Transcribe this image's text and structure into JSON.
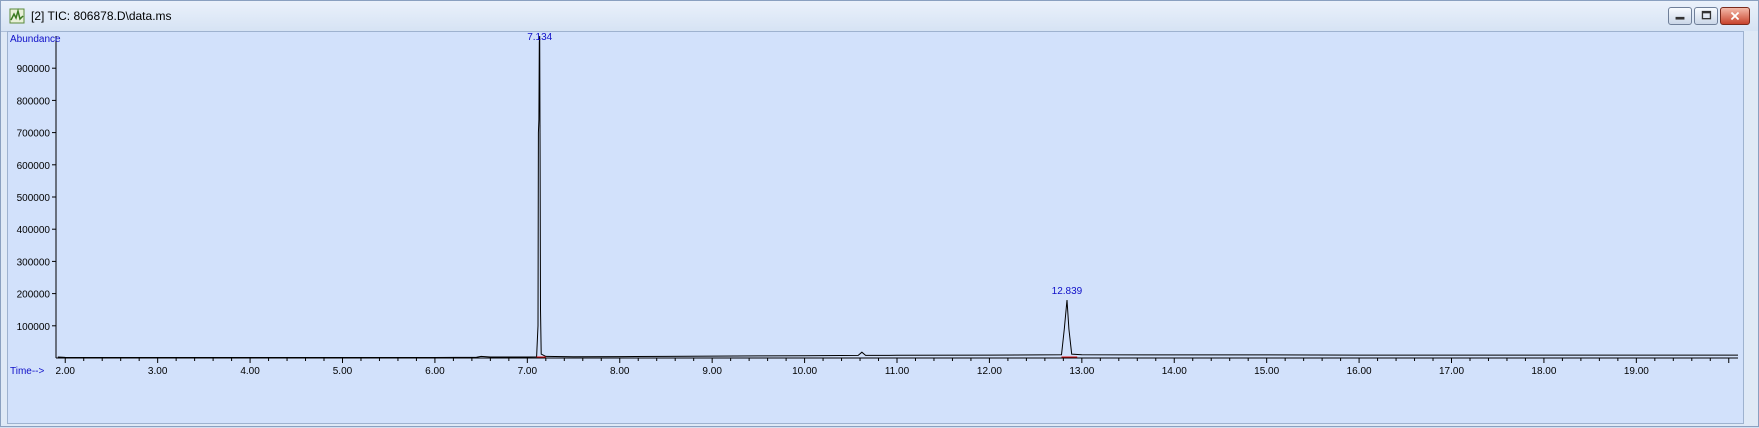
{
  "window": {
    "title": "[2] TIC: 806878.D\\data.ms",
    "icons": [
      "chromatogram-app-icon",
      "minimize-icon",
      "restore-icon",
      "close-icon"
    ]
  },
  "colors": {
    "plot_bg": "#d2e1fb",
    "trace": "#000000",
    "axis_label": "#1010c8",
    "peak_label": "#1010c8",
    "baseline_marker": "#e01010"
  },
  "chart_data": {
    "type": "line",
    "ylabel": "Abundance",
    "xlabel": "Time-->",
    "xlim": [
      1.9,
      20.1
    ],
    "ylim": [
      0,
      1000000
    ],
    "x_ticks": [
      "2.00",
      "3.00",
      "4.00",
      "5.00",
      "6.00",
      "7.00",
      "8.00",
      "9.00",
      "10.00",
      "11.00",
      "12.00",
      "13.00",
      "14.00",
      "15.00",
      "16.00",
      "17.00",
      "18.00",
      "19.00"
    ],
    "y_ticks": [
      "100000",
      "200000",
      "300000",
      "400000",
      "500000",
      "600000",
      "700000",
      "800000",
      "900000"
    ],
    "peak_labels": [
      {
        "x": 7.134,
        "text": "7.134",
        "shown": "7.134"
      },
      {
        "x": 12.839,
        "text": "12.839"
      }
    ],
    "series": [
      {
        "values_xy": [
          [
            1.92,
            3000
          ],
          [
            2.0,
            2000
          ],
          [
            3.0,
            1500
          ],
          [
            4.0,
            1500
          ],
          [
            5.0,
            1500
          ],
          [
            6.0,
            1500
          ],
          [
            6.45,
            2500
          ],
          [
            6.5,
            5000
          ],
          [
            6.6,
            3000
          ],
          [
            7.0,
            3000
          ],
          [
            7.1,
            3500
          ],
          [
            7.115,
            100000
          ],
          [
            7.12,
            700000
          ],
          [
            7.125,
            740000
          ],
          [
            7.13,
            980000
          ],
          [
            7.134,
            1000000
          ],
          [
            7.138,
            620000
          ],
          [
            7.142,
            150000
          ],
          [
            7.15,
            12000
          ],
          [
            7.2,
            5000
          ],
          [
            7.5,
            4000
          ],
          [
            8.0,
            4500
          ],
          [
            8.5,
            5000
          ],
          [
            9.0,
            6000
          ],
          [
            9.5,
            6500
          ],
          [
            10.0,
            7000
          ],
          [
            10.58,
            8000
          ],
          [
            10.62,
            18000
          ],
          [
            10.66,
            8000
          ],
          [
            11.0,
            8500
          ],
          [
            12.0,
            9000
          ],
          [
            12.78,
            10000
          ],
          [
            12.81,
            90000
          ],
          [
            12.839,
            180000
          ],
          [
            12.86,
            90000
          ],
          [
            12.89,
            12000
          ],
          [
            13.0,
            10000
          ],
          [
            14.0,
            9500
          ],
          [
            15.0,
            9500
          ],
          [
            16.0,
            9000
          ],
          [
            17.0,
            9000
          ],
          [
            18.0,
            9000
          ],
          [
            19.0,
            9000
          ],
          [
            20.1,
            9000
          ]
        ]
      }
    ]
  }
}
